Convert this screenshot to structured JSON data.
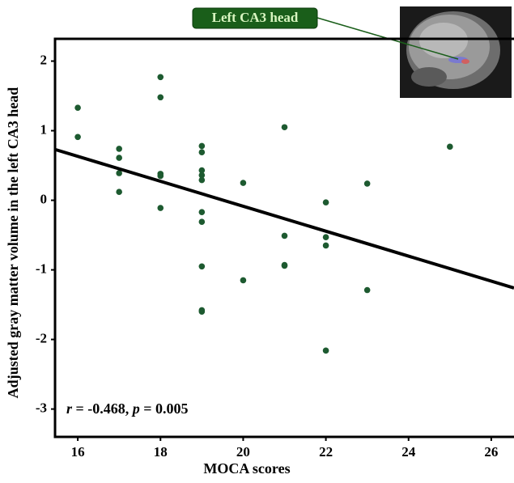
{
  "chart_data": {
    "type": "scatter",
    "x_label": "MOCA scores",
    "y_label": "Adjusted gray matter volume in the left CA3 head",
    "annotation_parts": [
      "r",
      " = -0.468, ",
      "p",
      " = 0.005"
    ],
    "callout": "Left CA3 head",
    "series": [
      {
        "color": "#1d5a30",
        "x": [
          16,
          16,
          17,
          17,
          17,
          17,
          18,
          18,
          18,
          18,
          18,
          19,
          19,
          19,
          19,
          19,
          19,
          19,
          19,
          19,
          19,
          20,
          20,
          21,
          21,
          21,
          21,
          22,
          22,
          22,
          22,
          23,
          23,
          25
        ],
        "values": [
          1.33,
          0.91,
          0.74,
          0.61,
          0.39,
          0.12,
          1.77,
          1.48,
          0.38,
          0.35,
          -0.11,
          0.78,
          0.69,
          0.43,
          0.36,
          0.29,
          -0.17,
          -0.31,
          -0.95,
          -1.58,
          -1.6,
          0.25,
          -1.15,
          1.05,
          -0.51,
          -0.93,
          -0.94,
          -0.03,
          -0.53,
          -0.65,
          -2.16,
          0.24,
          -1.29,
          0.77
        ]
      }
    ],
    "fit_line": {
      "color": "#000000",
      "x": [
        15.45,
        26.55
      ],
      "values": [
        0.73,
        -1.26
      ]
    },
    "xlim": [
      15.45,
      26.55
    ],
    "ylim": [
      -3.4,
      2.32
    ],
    "xticks": [
      16,
      18,
      20,
      22,
      24,
      26
    ],
    "yticks": [
      -3,
      -2,
      -1,
      0,
      1,
      2
    ]
  }
}
